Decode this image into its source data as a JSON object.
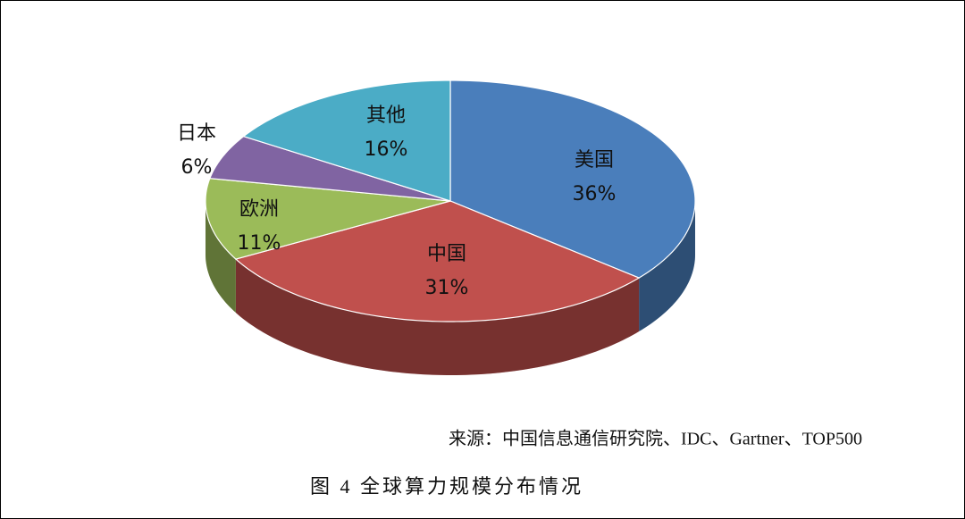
{
  "chart_data": {
    "type": "pie",
    "categories": [
      "美国",
      "中国",
      "欧洲",
      "日本",
      "其他"
    ],
    "values": [
      36,
      31,
      11,
      6,
      16
    ],
    "value_labels": [
      "36%",
      "31%",
      "11%",
      "6%",
      "16%"
    ],
    "colors": [
      "#4a7ebb",
      "#c0504d",
      "#9bbb59",
      "#8064a2",
      "#4bacc6"
    ],
    "source": "来源：中国信息通信研究院、IDC、Gartner、TOP500",
    "caption": "图 4  全球算力规模分布情况"
  }
}
